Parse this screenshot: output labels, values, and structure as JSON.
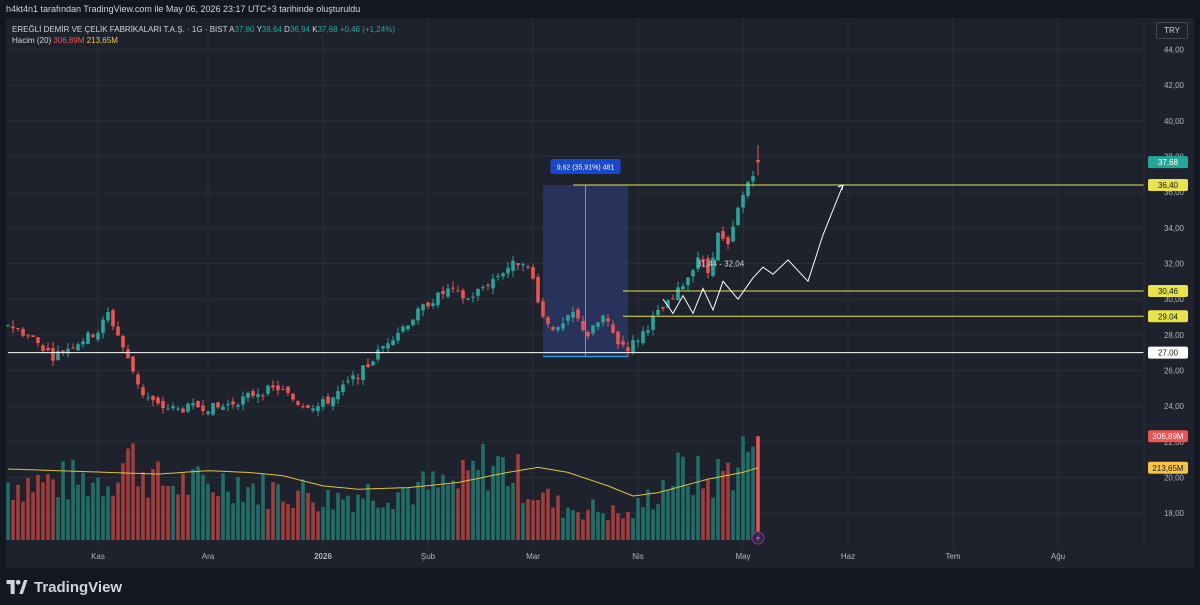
{
  "header": {
    "caption": "h4kt4n1 tarafından TradingView.com ile May 06, 2026 23:17 UTC+3 tarihinde oluşturuldu"
  },
  "legend": {
    "symbol": "EREĞLİ DEMİR VE ÇELİK FABRİKALARI T.A.Ş. · 1G · BIST",
    "a_label": "A",
    "a_value": "37,80",
    "y_label": "Y",
    "y_value": "38,64",
    "d_label": "D",
    "d_value": "36,94",
    "k_label": "K",
    "k_value": "37,68",
    "change": "+0,46 (+1,24%)",
    "volume_label": "Hacim (20)",
    "volume_value": "306,89M",
    "volume_ma_value": "213,65M"
  },
  "currency": "TRY",
  "footer": {
    "brand": "TradingView"
  },
  "colors": {
    "background": "#1e222d",
    "up": "#26a69a",
    "down": "#ef5350",
    "volume_up": "#1f6f69",
    "volume_down": "#a23d3d",
    "level_line": "#e8e34a",
    "base_line": "#ffffff",
    "measure_fill": "#2b3a6b",
    "measure_line": "#29b6f6",
    "measure_label_bg": "#1848cc",
    "volume_ma": "#e0c33a",
    "projection": "#ffffff"
  },
  "chart_data": {
    "type": "candlestick",
    "y_axis": {
      "min": 16.5,
      "max": 45.2,
      "ticks": [
        "44,00",
        "42,00",
        "40,00",
        "38,00",
        "36,00",
        "34,00",
        "32,00",
        "30,00",
        "28,00",
        "26,00",
        "24,00",
        "22,00",
        "20,00",
        "18,00"
      ],
      "tick_values": [
        44,
        42,
        40,
        38,
        36,
        34,
        32,
        30,
        28,
        26,
        24,
        22,
        20,
        18
      ]
    },
    "x_axis": {
      "labels": [
        "Kas",
        "Ara",
        "2026",
        "Şub",
        "Mar",
        "Nis",
        "May",
        "Haz",
        "Tem",
        "Ağu"
      ],
      "label_index": [
        18,
        40,
        63,
        84,
        105,
        126,
        147,
        168,
        189,
        210
      ],
      "bar_count": 221
    },
    "price_keypoints": [
      [
        0,
        28.6
      ],
      [
        5,
        27.8
      ],
      [
        9,
        26.8
      ],
      [
        14,
        27.6
      ],
      [
        18,
        28.2
      ],
      [
        20,
        29.2
      ],
      [
        22,
        28.0
      ],
      [
        24,
        26.6
      ],
      [
        27,
        24.7
      ],
      [
        30,
        24.0
      ],
      [
        34,
        23.8
      ],
      [
        38,
        24.0
      ],
      [
        42,
        23.9
      ],
      [
        46,
        24.3
      ],
      [
        50,
        24.8
      ],
      [
        54,
        25.0
      ],
      [
        58,
        24.2
      ],
      [
        62,
        24.0
      ],
      [
        65,
        24.5
      ],
      [
        68,
        25.3
      ],
      [
        72,
        26.3
      ],
      [
        76,
        27.7
      ],
      [
        80,
        28.7
      ],
      [
        84,
        29.8
      ],
      [
        88,
        30.5
      ],
      [
        92,
        30.0
      ],
      [
        96,
        30.9
      ],
      [
        100,
        31.8
      ],
      [
        103,
        32.2
      ],
      [
        105,
        31.1
      ],
      [
        107,
        29.0
      ],
      [
        110,
        28.2
      ],
      [
        113,
        29.2
      ],
      [
        116,
        28.0
      ],
      [
        119,
        29.0
      ],
      [
        122,
        27.6
      ],
      [
        124,
        27.3
      ],
      [
        126,
        27.8
      ],
      [
        128,
        28.5
      ],
      [
        130,
        29.2
      ],
      [
        133,
        30.0
      ],
      [
        136,
        31.3
      ],
      [
        138,
        32.4
      ],
      [
        140,
        31.5
      ],
      [
        142,
        33.6
      ],
      [
        144,
        32.9
      ],
      [
        146,
        35.0
      ],
      [
        148,
        36.6
      ],
      [
        150,
        37.68
      ]
    ],
    "last_bar": {
      "index": 150,
      "open": 37.8,
      "high": 38.64,
      "low": 36.94,
      "close": 37.68
    },
    "volume_keypoints": [
      [
        0,
        171
      ],
      [
        10,
        171
      ],
      [
        20,
        180
      ],
      [
        24,
        250
      ],
      [
        30,
        170
      ],
      [
        40,
        160
      ],
      [
        45,
        180
      ],
      [
        50,
        150
      ],
      [
        60,
        140
      ],
      [
        64,
        120
      ],
      [
        70,
        140
      ],
      [
        80,
        150
      ],
      [
        90,
        160
      ],
      [
        96,
        230
      ],
      [
        100,
        210
      ],
      [
        105,
        150
      ],
      [
        110,
        100
      ],
      [
        118,
        90
      ],
      [
        124,
        70
      ],
      [
        128,
        120
      ],
      [
        132,
        180
      ],
      [
        135,
        200
      ],
      [
        140,
        170
      ],
      [
        145,
        220
      ],
      [
        150,
        306.89
      ]
    ],
    "volume_ma_keypoints": [
      [
        0,
        210
      ],
      [
        10,
        205
      ],
      [
        20,
        200
      ],
      [
        30,
        195
      ],
      [
        40,
        205
      ],
      [
        48,
        200
      ],
      [
        55,
        190
      ],
      [
        63,
        160
      ],
      [
        70,
        150
      ],
      [
        80,
        155
      ],
      [
        90,
        170
      ],
      [
        100,
        200
      ],
      [
        106,
        215
      ],
      [
        112,
        200
      ],
      [
        120,
        160
      ],
      [
        125,
        130
      ],
      [
        130,
        140
      ],
      [
        140,
        180
      ],
      [
        147,
        200
      ],
      [
        150,
        213.65
      ]
    ],
    "volume_max": 420,
    "horizontal_levels": [
      {
        "value": 36.4,
        "label": "36,40",
        "color": "#e8e34a",
        "from_index": 113
      },
      {
        "value": 30.46,
        "label": "30,46",
        "color": "#e8e34a",
        "from_index": 123
      },
      {
        "value": 29.04,
        "label": "29,04",
        "color": "#e8e34a",
        "from_index": 123
      },
      {
        "value": 27.0,
        "label": "27,00",
        "color": "#ffffff",
        "from_index": 0
      }
    ],
    "price_badge": {
      "value": 37.68,
      "label": "37,68"
    },
    "volume_badges": [
      {
        "label": "306,89M",
        "color": "#ef5350"
      },
      {
        "label": "213,65M",
        "color": "#f5c542"
      }
    ],
    "measurement": {
      "from_index": 107,
      "to_index": 124,
      "low": 26.78,
      "high": 36.4,
      "label": "9,62 (35,91%) 481"
    },
    "projection_path": [
      [
        131,
        30.0
      ],
      [
        133,
        29.2
      ],
      [
        135,
        30.2
      ],
      [
        137,
        29.2
      ],
      [
        139,
        30.6
      ],
      [
        141,
        29.4
      ],
      [
        143,
        31.0
      ],
      [
        146,
        30.0
      ],
      [
        149,
        31.2
      ],
      [
        151,
        31.8
      ],
      [
        153,
        31.4
      ],
      [
        156,
        32.2
      ],
      [
        160,
        31.0
      ],
      [
        163,
        33.6
      ],
      [
        167,
        36.4
      ]
    ],
    "annotation": {
      "label": "31,44 - 32,04",
      "index": 143,
      "value": 32.0
    }
  }
}
